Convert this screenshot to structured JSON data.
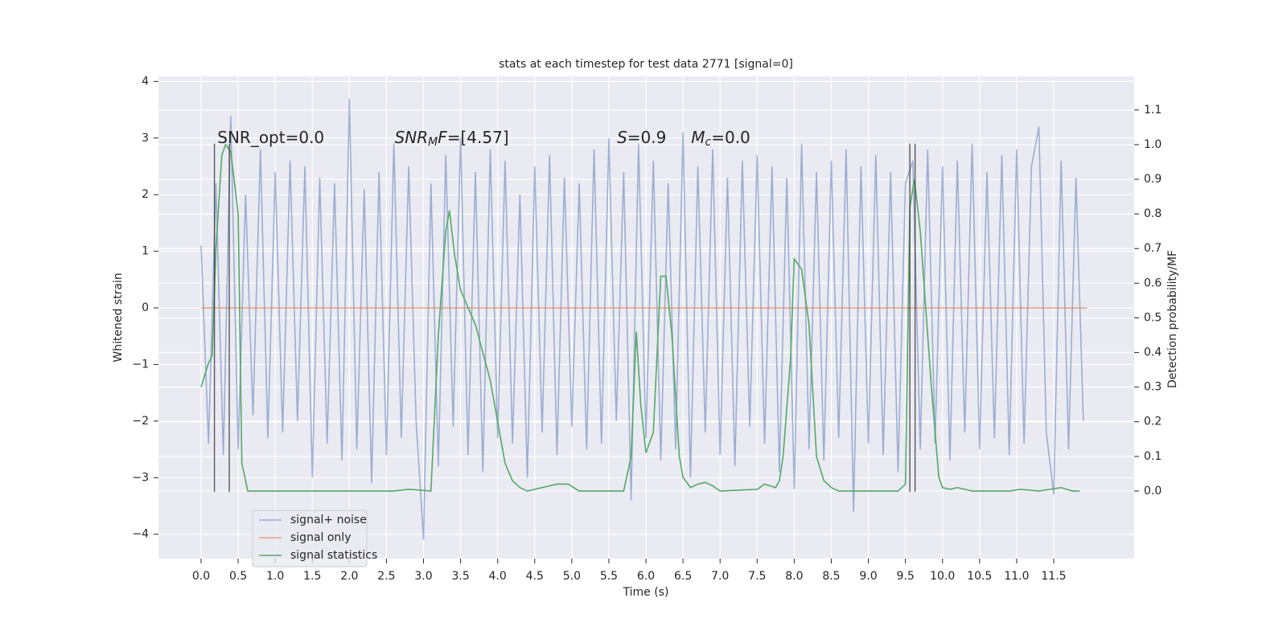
{
  "chart_data": {
    "type": "line",
    "title": "stats at each timestep for test data 2771 [signal=0]",
    "xlabel": "Time (s)",
    "ylabel": "Whitened strain",
    "y2label": "Detection probability/MF",
    "xlim": [
      -0.575,
      12.585
    ],
    "ylim": [
      -4.43,
      4.09
    ],
    "y2lim": [
      -0.195,
      1.197
    ],
    "xticks": [
      {
        "value": 0,
        "label": "0.0"
      },
      0.5,
      {
        "value": 1,
        "label": "1.0"
      },
      1.5,
      {
        "value": 2,
        "label": "2.0"
      },
      2.5,
      {
        "value": 3,
        "label": "3.0"
      },
      3.5,
      {
        "value": 4,
        "label": "4.0"
      },
      4.5,
      {
        "value": 5,
        "label": "5.0"
      },
      5.5,
      {
        "value": 6,
        "label": "6.0"
      },
      6.5,
      {
        "value": 7,
        "label": "7.0"
      },
      7.5,
      {
        "value": 8,
        "label": "8.0"
      },
      8.5,
      {
        "value": 9,
        "label": "9.0"
      },
      9.5,
      {
        "value": 10,
        "label": "10.0"
      },
      10.5,
      {
        "value": 11,
        "label": "11.0"
      },
      11.5
    ],
    "yticks": [
      {
        "value": -4,
        "label": "−4"
      },
      {
        "value": -3,
        "label": "−3"
      },
      {
        "value": -2,
        "label": "−2"
      },
      {
        "value": -1,
        "label": "−1"
      },
      0,
      1,
      2,
      3,
      4
    ],
    "y2ticks": [
      {
        "value": 0,
        "label": "0.0"
      },
      0.1,
      0.2,
      0.3,
      0.4,
      0.5,
      0.6,
      0.7,
      0.8,
      0.9,
      {
        "value": 1,
        "label": "1.0"
      },
      1.1
    ],
    "grid": true,
    "legend": "lower left",
    "series": [
      {
        "name": "signal+ noise",
        "color": "#4c72b0",
        "opacity": 0.5,
        "x": [
          0,
          0.1,
          0.2,
          0.3,
          0.4,
          0.5,
          0.6,
          0.7,
          0.8,
          0.9,
          1,
          1.1,
          1.2,
          1.3,
          1.4,
          1.5,
          1.6,
          1.7,
          1.8,
          1.9,
          2,
          2.1,
          2.2,
          2.3,
          2.4,
          2.5,
          2.6,
          2.7,
          2.8,
          2.9,
          3,
          3.1,
          3.2,
          3.3,
          3.4,
          3.5,
          3.6,
          3.7,
          3.8,
          3.9,
          4,
          4.1,
          4.2,
          4.3,
          4.4,
          4.5,
          4.6,
          4.7,
          4.8,
          4.9,
          5,
          5.1,
          5.2,
          5.3,
          5.4,
          5.5,
          5.6,
          5.7,
          5.8,
          5.9,
          6,
          6.1,
          6.2,
          6.3,
          6.4,
          6.5,
          6.6,
          6.7,
          6.8,
          6.9,
          7,
          7.1,
          7.2,
          7.3,
          7.4,
          7.5,
          7.6,
          7.7,
          7.8,
          7.9,
          8,
          8.1,
          8.2,
          8.3,
          8.4,
          8.5,
          8.6,
          8.7,
          8.8,
          8.9,
          9,
          9.1,
          9.2,
          9.3,
          9.4,
          9.5,
          9.6,
          9.7,
          9.8,
          9.9,
          10,
          10.1,
          10.2,
          10.3,
          10.4,
          10.5,
          10.6,
          10.7,
          10.8,
          10.9,
          11,
          11.1,
          11.2,
          11.3,
          11.4,
          11.5,
          11.6,
          11.7,
          11.8,
          11.9
        ],
        "values": [
          1.1,
          -2.4,
          2.2,
          -2.6,
          3.4,
          -2.5,
          2.0,
          -1.9,
          2.8,
          -2.3,
          2.4,
          -2.2,
          2.6,
          -2.0,
          2.5,
          -3.0,
          2.3,
          -2.4,
          2.2,
          -2.7,
          3.7,
          -2.5,
          2.1,
          -3.1,
          2.4,
          -2.6,
          2.9,
          -2.3,
          2.5,
          -2.0,
          -4.1,
          2.2,
          -2.8,
          2.7,
          -2.1,
          3.0,
          -2.6,
          2.4,
          -2.9,
          2.8,
          -2.3,
          2.6,
          -2.4,
          2.0,
          -3.0,
          2.5,
          -2.2,
          2.7,
          -2.6,
          2.3,
          -2.1,
          2.2,
          -2.5,
          2.8,
          -2.4,
          3.0,
          -2.0,
          2.4,
          -3.4,
          2.9,
          -2.3,
          2.6,
          -2.7,
          2.2,
          -2.5,
          3.1,
          -3.0,
          2.5,
          -2.2,
          2.8,
          -2.6,
          2.3,
          -2.8,
          2.6,
          -2.1,
          2.7,
          -2.4,
          2.5,
          -2.9,
          2.3,
          -3.2,
          2.9,
          -2.5,
          2.4,
          -2.7,
          2.6,
          -2.3,
          2.8,
          -3.6,
          2.5,
          -2.4,
          2.7,
          -2.6,
          2.4,
          -2.9,
          2.2,
          2.6,
          -2.5,
          2.8,
          -2.4,
          2.5,
          -2.7,
          2.6,
          -2.2,
          2.9,
          -2.5,
          2.4,
          -2.3,
          2.7,
          -2.6,
          2.8,
          -2.4,
          2.5,
          3.2,
          -2.2,
          -3.3,
          2.6,
          -2.5,
          2.3,
          -2.0
        ]
      },
      {
        "name": "signal only",
        "color": "#dd8452",
        "opacity": 0.7,
        "x": [
          0,
          11.95
        ],
        "values": [
          0,
          0
        ]
      },
      {
        "name": "signal statistics",
        "color": "#55a868",
        "opacity": 1,
        "axis": "y2",
        "x": [
          0,
          0.1,
          0.15,
          0.2,
          0.28,
          0.33,
          0.4,
          0.5,
          0.55,
          0.63,
          1,
          2,
          2.6,
          2.8,
          3.1,
          3.2,
          3.3,
          3.35,
          3.42,
          3.5,
          3.7,
          3.9,
          4,
          4.1,
          4.2,
          4.3,
          4.4,
          4.6,
          4.8,
          4.95,
          5.1,
          5.7,
          5.8,
          5.87,
          5.93,
          6,
          6.1,
          6.2,
          6.27,
          6.35,
          6.45,
          6.5,
          6.6,
          6.7,
          6.8,
          6.9,
          7,
          7.5,
          7.6,
          7.75,
          7.8,
          7.85,
          7.95,
          8,
          8.1,
          8.2,
          8.3,
          8.4,
          8.5,
          8.6,
          9,
          9.4,
          9.5,
          9.56,
          9.62,
          9.7,
          9.85,
          9.95,
          10,
          10.1,
          10.2,
          10.4,
          10.9,
          11.05,
          11.3,
          11.6,
          11.75,
          11.85
        ],
        "values": [
          0.3,
          0.37,
          0.39,
          0.7,
          0.97,
          1.0,
          0.98,
          0.8,
          0.08,
          0.0,
          0.0,
          0.0,
          0.0,
          0.005,
          0.0,
          0.45,
          0.75,
          0.81,
          0.68,
          0.58,
          0.48,
          0.32,
          0.2,
          0.08,
          0.03,
          0.01,
          0.0,
          0.01,
          0.02,
          0.02,
          0.0,
          0.0,
          0.1,
          0.46,
          0.25,
          0.11,
          0.17,
          0.62,
          0.62,
          0.45,
          0.1,
          0.04,
          0.01,
          0.02,
          0.025,
          0.015,
          0.0,
          0.005,
          0.02,
          0.01,
          0.03,
          0.1,
          0.38,
          0.67,
          0.64,
          0.48,
          0.1,
          0.03,
          0.01,
          0.0,
          0.0,
          0.0,
          0.02,
          0.82,
          0.9,
          0.75,
          0.3,
          0.04,
          0.01,
          0.005,
          0.01,
          0.0,
          0.0,
          0.005,
          0.0,
          0.01,
          0.0,
          0.0
        ]
      }
    ],
    "vlines": {
      "x": [
        0.18,
        0.38,
        9.56,
        9.63
      ],
      "ymin": -3.25,
      "ymax": 2.9,
      "color": "#333333"
    },
    "annotations": [
      {
        "x": 0.22,
        "y": 3.0,
        "parts": [
          {
            "text": "SNR_opt=0.0"
          }
        ]
      },
      {
        "x": 2.61,
        "y": 3.0,
        "parts": [
          {
            "text": "SNR",
            "style": "italic"
          },
          {
            "text": "M",
            "style": "sub"
          },
          {
            "text": "F",
            "style": "italic"
          },
          {
            "text": "=[4.57]"
          }
        ]
      },
      {
        "x": 5.61,
        "y": 3.0,
        "parts": [
          {
            "text": "S",
            "style": "italic"
          },
          {
            "text": "=0.9"
          }
        ]
      },
      {
        "x": 6.61,
        "y": 3.0,
        "parts": [
          {
            "text": "M",
            "style": "italic"
          },
          {
            "text": "c",
            "style": "sub"
          },
          {
            "text": "=0.0"
          }
        ]
      }
    ]
  }
}
